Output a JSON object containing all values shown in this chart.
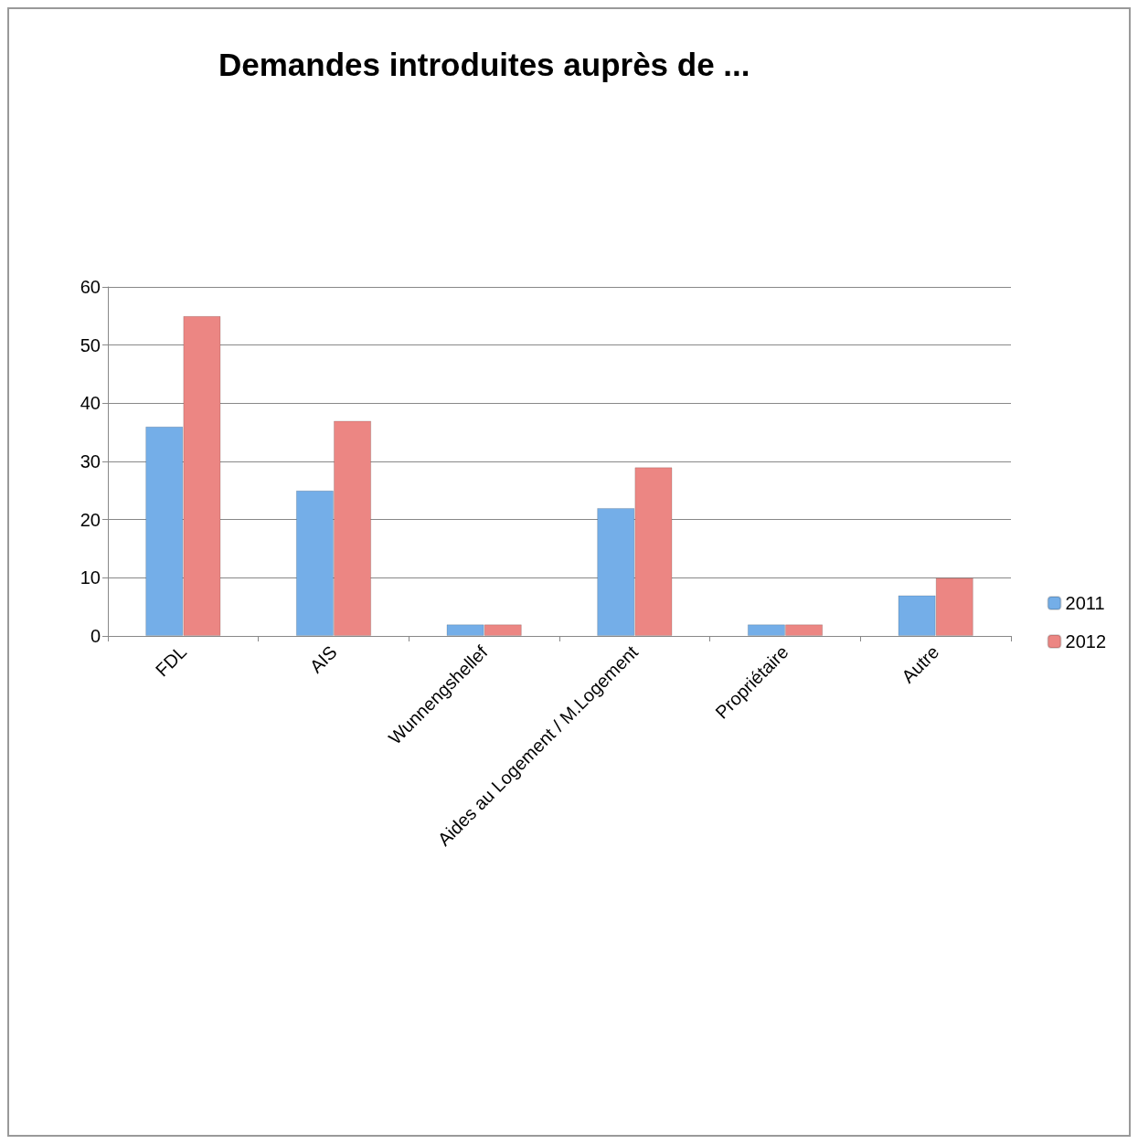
{
  "chart_data": {
    "type": "bar",
    "title": "Demandes introduites auprès de ...",
    "categories": [
      "FDL",
      "AIS",
      "Wunnengshellef",
      "Aides au Logement / M.Logement",
      "Propriétaire",
      "Autre"
    ],
    "series": [
      {
        "name": "2011",
        "color": "#74aee8",
        "values": [
          36,
          25,
          2,
          22,
          2,
          7
        ]
      },
      {
        "name": "2012",
        "color": "#ec8683",
        "values": [
          55,
          37,
          2,
          29,
          2,
          10
        ]
      }
    ],
    "ylim": [
      0,
      60
    ],
    "yticks": [
      0,
      10,
      20,
      30,
      40,
      50,
      60
    ],
    "grid": "y",
    "legend": "right"
  }
}
